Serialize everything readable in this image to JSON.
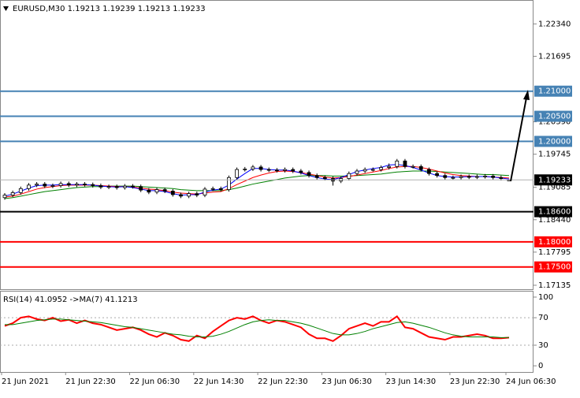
{
  "chart_data": [
    {
      "type": "candlestick",
      "title": "EURUSD,M30  1.19213 1.19239 1.19213 1.19233",
      "categories": [
        "21 Jun 2021",
        null,
        null,
        null,
        null,
        null,
        null,
        null,
        "21 Jun 22:30",
        null,
        null,
        null,
        null,
        null,
        null,
        null,
        "22 Jun 06:30",
        null,
        null,
        null,
        null,
        null,
        null,
        null,
        "22 Jun 14:30",
        null,
        null,
        null,
        null,
        null,
        null,
        null,
        "22 Jun 22:30",
        null,
        null,
        null,
        null,
        null,
        null,
        null,
        "23 Jun 06:30",
        null,
        null,
        null,
        null,
        null,
        null,
        null,
        "23 Jun 14:30",
        null,
        null,
        null,
        null,
        null,
        null,
        null,
        "23 Jun 22:30",
        null,
        null,
        null,
        null,
        null,
        null,
        "24 Jun 06:30"
      ],
      "open": [
        1.1888,
        1.1893,
        1.1898,
        1.1906,
        1.1913,
        1.1915,
        1.1911,
        1.1912,
        1.1916,
        1.1913,
        1.1915,
        1.1914,
        1.1912,
        1.1909,
        1.191,
        1.1908,
        1.1911,
        1.191,
        1.1903,
        1.1899,
        1.1904,
        1.1901,
        1.1894,
        1.1891,
        1.1896,
        1.1893,
        1.1905,
        1.1906,
        1.1904,
        1.1928,
        1.1944,
        1.1945,
        1.1949,
        1.1944,
        1.1943,
        1.1942,
        1.1944,
        1.1941,
        1.1938,
        1.1932,
        1.1928,
        1.1926,
        1.1921,
        1.1926,
        1.1936,
        1.1941,
        1.1944,
        1.1944,
        1.1948,
        1.195,
        1.1961,
        1.195,
        1.195,
        1.1944,
        1.1936,
        1.1932,
        1.1928,
        1.1928,
        1.193,
        1.1929,
        1.193,
        1.1931,
        1.1928,
        1.19213
      ],
      "high": [
        1.1897,
        1.1902,
        1.191,
        1.1917,
        1.1919,
        1.1919,
        1.1916,
        1.192,
        1.192,
        1.1919,
        1.1919,
        1.1918,
        1.1916,
        1.1914,
        1.1914,
        1.1915,
        1.1915,
        1.1914,
        1.1907,
        1.1908,
        1.1908,
        1.1905,
        1.1898,
        1.19,
        1.19,
        1.1909,
        1.191,
        1.191,
        1.1932,
        1.1948,
        1.1949,
        1.1953,
        1.1953,
        1.1948,
        1.1947,
        1.1948,
        1.1948,
        1.1945,
        1.1942,
        1.1936,
        1.1932,
        1.193,
        1.193,
        1.194,
        1.1945,
        1.1948,
        1.1948,
        1.1952,
        1.1956,
        1.1965,
        1.1965,
        1.1954,
        1.1954,
        1.1948,
        1.194,
        1.1936,
        1.1932,
        1.1934,
        1.1934,
        1.1934,
        1.1935,
        1.1935,
        1.1932,
        1.19239
      ],
      "low": [
        1.1884,
        1.1889,
        1.1894,
        1.1902,
        1.1909,
        1.1907,
        1.1907,
        1.1908,
        1.1909,
        1.1909,
        1.191,
        1.1908,
        1.1905,
        1.1905,
        1.1904,
        1.1904,
        1.1906,
        1.1899,
        1.1895,
        1.1895,
        1.1897,
        1.189,
        1.1887,
        1.1887,
        1.1889,
        1.1889,
        1.1901,
        1.19,
        1.19,
        1.1924,
        1.194,
        1.1941,
        1.194,
        1.1939,
        1.1938,
        1.1938,
        1.1937,
        1.1934,
        1.1928,
        1.1924,
        1.1922,
        1.1912,
        1.1917,
        1.1922,
        1.1932,
        1.1937,
        1.194,
        1.194,
        1.1944,
        1.1946,
        1.1946,
        1.1946,
        1.194,
        1.1932,
        1.1928,
        1.1924,
        1.1924,
        1.1924,
        1.1925,
        1.1925,
        1.1926,
        1.1924,
        1.1922,
        1.19213
      ],
      "close": [
        1.1893,
        1.1898,
        1.1906,
        1.1913,
        1.1915,
        1.1911,
        1.1912,
        1.1916,
        1.1913,
        1.1915,
        1.1914,
        1.1912,
        1.1909,
        1.191,
        1.1908,
        1.1911,
        1.191,
        1.1903,
        1.1899,
        1.1904,
        1.1901,
        1.1894,
        1.1891,
        1.1896,
        1.1893,
        1.1905,
        1.1906,
        1.1904,
        1.1928,
        1.1944,
        1.1945,
        1.1949,
        1.1944,
        1.1943,
        1.1942,
        1.1944,
        1.1941,
        1.1938,
        1.1932,
        1.1928,
        1.1926,
        1.1921,
        1.1926,
        1.1936,
        1.1941,
        1.1944,
        1.1944,
        1.1948,
        1.195,
        1.1961,
        1.195,
        1.195,
        1.1944,
        1.1936,
        1.1932,
        1.1928,
        1.1928,
        1.193,
        1.1929,
        1.193,
        1.1931,
        1.1928,
        1.1926,
        1.19233
      ],
      "series": [
        {
          "color": "#008000",
          "values": [
            1.1886,
            1.1888,
            1.1891,
            1.1894,
            1.1897,
            1.19,
            1.1902,
            1.1904,
            1.1906,
            1.1908,
            1.1909,
            1.191,
            1.191,
            1.1911,
            1.1911,
            1.1911,
            1.1911,
            1.191,
            1.1909,
            1.1908,
            1.1907,
            1.1906,
            1.1904,
            1.1903,
            1.1902,
            1.1902,
            1.1902,
            1.1902,
            1.1904,
            1.1907,
            1.1911,
            1.1915,
            1.1918,
            1.1921,
            1.1924,
            1.1927,
            1.1929,
            1.1931,
            1.1932,
            1.1932,
            1.1932,
            1.1931,
            1.1931,
            1.1931,
            1.1932,
            1.1933,
            1.1934,
            1.1935,
            1.1937,
            1.1939,
            1.194,
            1.1941,
            1.1941,
            1.1941,
            1.194,
            1.1939,
            1.1938,
            1.1937,
            1.1936,
            1.1935,
            1.1934,
            1.1934,
            1.1933,
            1.1932
          ]
        },
        {
          "color": "#ff0000",
          "values": [
            1.1889,
            1.1891,
            1.1895,
            1.19,
            1.1905,
            1.1908,
            1.191,
            1.1912,
            1.1913,
            1.1913,
            1.1913,
            1.1913,
            1.1912,
            1.1911,
            1.191,
            1.191,
            1.1909,
            1.1907,
            1.1905,
            1.1904,
            1.1902,
            1.1899,
            1.1897,
            1.1896,
            1.1895,
            1.1897,
            1.1899,
            1.19,
            1.1906,
            1.1914,
            1.1921,
            1.1928,
            1.1933,
            1.1937,
            1.194,
            1.1941,
            1.194,
            1.1938,
            1.1935,
            1.1932,
            1.1929,
            1.1927,
            1.1928,
            1.193,
            1.1933,
            1.1936,
            1.1939,
            1.1942,
            1.1946,
            1.1949,
            1.195,
            1.195,
            1.1948,
            1.1945,
            1.1941,
            1.1937,
            1.1934,
            1.1932,
            1.1931,
            1.193,
            1.193,
            1.1929,
            1.1928,
            1.1927
          ]
        },
        {
          "color": "#0000ff",
          "values": [
            1.1891,
            1.1895,
            1.1901,
            1.1907,
            1.1912,
            1.1913,
            1.1913,
            1.1914,
            1.1914,
            1.1914,
            1.1914,
            1.1913,
            1.1911,
            1.191,
            1.1909,
            1.191,
            1.1908,
            1.1905,
            1.1902,
            1.1902,
            1.19,
            1.1896,
            1.1893,
            1.1894,
            1.1894,
            1.1899,
            1.1903,
            1.1905,
            1.1913,
            1.1925,
            1.1936,
            1.1946,
            1.1946,
            1.1944,
            1.1943,
            1.1943,
            1.1941,
            1.1937,
            1.1932,
            1.1928,
            1.1925,
            1.1924,
            1.1928,
            1.1934,
            1.194,
            1.1943,
            1.1946,
            1.1948,
            1.1953,
            1.1954,
            1.1952,
            1.1948,
            1.1943,
            1.1937,
            1.1932,
            1.193,
            1.1929,
            1.1929,
            1.193,
            1.193,
            1.193,
            1.1929,
            1.1927,
            1.1925
          ]
        }
      ],
      "ylim": [
        1.1704,
        1.228
      ],
      "yticks": [
        {
          "value": 1.2234,
          "label": "1.22340"
        },
        {
          "value": 1.21695,
          "label": "1.21695"
        },
        {
          "value": 1.2039,
          "label": "1.20390"
        },
        {
          "value": 1.19745,
          "label": "1.19745"
        },
        {
          "value": 1.19085,
          "label": "1.19085"
        },
        {
          "value": 1.1844,
          "label": "1.18440"
        },
        {
          "value": 1.17795,
          "label": "1.17795"
        },
        {
          "value": 1.17135,
          "label": "1.17135"
        }
      ],
      "levels": [
        {
          "value": 1.21,
          "label": "1.21000",
          "color": "#4682b4"
        },
        {
          "value": 1.205,
          "label": "1.20500",
          "color": "#4682b4"
        },
        {
          "value": 1.2,
          "label": "1.20000",
          "color": "#4682b4"
        },
        {
          "value": 1.19233,
          "label": "1.19233",
          "color": "#b0b0b0"
        },
        {
          "value": 1.186,
          "label": "1.18600",
          "color": "#000000"
        },
        {
          "value": 1.18,
          "label": "1.18000",
          "color": "#ff0000"
        },
        {
          "value": 1.175,
          "label": "1.17500",
          "color": "#ff0000"
        }
      ]
    },
    {
      "type": "line",
      "title": "RSI(14) 41.0952  ->MA(7) 41.1213",
      "ylim": [
        -9,
        108
      ],
      "yticks": [
        0,
        30,
        70,
        100
      ],
      "levels": [
        30,
        70
      ],
      "series": [
        {
          "color": "#ff0000",
          "values": [
            58,
            62,
            70,
            72,
            68,
            66,
            70,
            65,
            67,
            62,
            66,
            62,
            60,
            56,
            52,
            54,
            56,
            52,
            46,
            42,
            48,
            44,
            38,
            36,
            44,
            40,
            50,
            58,
            66,
            70,
            68,
            72,
            66,
            62,
            66,
            64,
            60,
            56,
            46,
            40,
            40,
            36,
            44,
            54,
            58,
            62,
            58,
            64,
            64,
            72,
            56,
            54,
            48,
            42,
            40,
            38,
            42,
            42,
            44,
            46,
            44,
            40,
            40,
            41.0952
          ]
        },
        {
          "color": "#008000",
          "values": [
            60,
            60,
            62,
            64,
            66,
            67,
            68,
            68,
            67,
            66,
            65,
            64,
            63,
            61,
            59,
            57,
            56,
            54,
            52,
            50,
            48,
            46,
            45,
            43,
            42,
            42,
            43,
            46,
            50,
            55,
            60,
            64,
            66,
            67,
            66,
            66,
            64,
            62,
            59,
            55,
            51,
            47,
            45,
            45,
            47,
            50,
            54,
            57,
            60,
            63,
            64,
            62,
            59,
            56,
            52,
            48,
            45,
            43,
            42,
            42,
            42,
            42,
            41,
            41.1213
          ]
        }
      ]
    }
  ]
}
